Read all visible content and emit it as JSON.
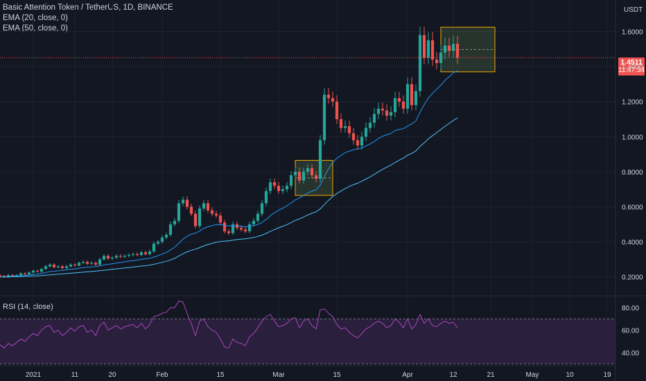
{
  "legend": {
    "title": "Basic Attention Token / TetherUS, 1D, BINANCE",
    "ema20": "EMA (20, close, 0)",
    "ema50": "EMA (50, close, 0)"
  },
  "rsi_label": "RSI (14, close)",
  "currency": "USDT",
  "last_price": {
    "value": "1.4511",
    "countdown": "11:47:34"
  },
  "colors": {
    "bg": "#131722",
    "up": "#26a69a",
    "down": "#ef5350",
    "ema20": "#2196f3",
    "ema50": "#4fc3f7",
    "rsi": "#ab47bc",
    "rsi_band": "#2a1f3d",
    "box_border": "#f7a600",
    "box_fill": "#4c6b45",
    "text": "#d1d4dc"
  },
  "chart_data": {
    "type": "candlestick",
    "symbol": "BATUSDT",
    "timeframe": "1D",
    "xlim": [
      "2020-12-24",
      "2021-05-21"
    ],
    "ylim": [
      0.1,
      1.78
    ],
    "y_ticks": [
      "0.2000",
      "0.4000",
      "0.6000",
      "0.8000",
      "1.0000",
      "1.2000",
      "1.4000",
      "1.6000"
    ],
    "x_ticks": [
      {
        "label": "2021",
        "date": "2021-01-01"
      },
      {
        "label": "11",
        "date": "2021-01-11"
      },
      {
        "label": "20",
        "date": "2021-01-20"
      },
      {
        "label": "Feb",
        "date": "2021-02-01"
      },
      {
        "label": "15",
        "date": "2021-02-15"
      },
      {
        "label": "Mar",
        "date": "2021-03-01"
      },
      {
        "label": "15",
        "date": "2021-03-15"
      },
      {
        "label": "Apr",
        "date": "2021-04-01"
      },
      {
        "label": "12",
        "date": "2021-04-12"
      },
      {
        "label": "21",
        "date": "2021-04-21"
      },
      {
        "label": "May",
        "date": "2021-05-01"
      },
      {
        "label": "10",
        "date": "2021-05-10"
      },
      {
        "label": "19",
        "date": "2021-05-19"
      }
    ],
    "start_date": "2020-12-24",
    "candles_close": [
      0.205,
      0.2,
      0.21,
      0.205,
      0.21,
      0.22,
      0.215,
      0.225,
      0.235,
      0.23,
      0.245,
      0.26,
      0.27,
      0.255,
      0.26,
      0.25,
      0.26,
      0.27,
      0.265,
      0.28,
      0.285,
      0.275,
      0.28,
      0.27,
      0.3,
      0.32,
      0.305,
      0.31,
      0.32,
      0.315,
      0.32,
      0.325,
      0.33,
      0.325,
      0.34,
      0.33,
      0.345,
      0.39,
      0.4,
      0.425,
      0.44,
      0.5,
      0.52,
      0.62,
      0.64,
      0.6,
      0.56,
      0.49,
      0.59,
      0.62,
      0.58,
      0.56,
      0.55,
      0.51,
      0.46,
      0.45,
      0.5,
      0.48,
      0.47,
      0.46,
      0.5,
      0.52,
      0.56,
      0.62,
      0.69,
      0.74,
      0.72,
      0.69,
      0.7,
      0.72,
      0.78,
      0.8,
      0.75,
      0.8,
      0.82,
      0.78,
      0.76,
      0.98,
      1.24,
      1.22,
      1.2,
      1.1,
      1.05,
      1.06,
      1.02,
      0.98,
      0.95,
      1.0,
      1.05,
      1.08,
      1.13,
      1.16,
      1.15,
      1.12,
      1.14,
      1.22,
      1.2,
      1.16,
      1.3,
      1.18,
      1.26,
      1.58,
      1.45,
      1.55,
      1.44,
      1.42,
      1.48,
      1.52,
      1.49,
      1.53,
      1.45
    ],
    "candles_open": [
      0.21,
      0.205,
      0.2,
      0.21,
      0.205,
      0.21,
      0.22,
      0.215,
      0.225,
      0.235,
      0.23,
      0.245,
      0.26,
      0.27,
      0.255,
      0.26,
      0.25,
      0.26,
      0.27,
      0.265,
      0.28,
      0.285,
      0.275,
      0.28,
      0.27,
      0.3,
      0.32,
      0.305,
      0.31,
      0.32,
      0.315,
      0.32,
      0.325,
      0.33,
      0.325,
      0.34,
      0.33,
      0.345,
      0.39,
      0.4,
      0.425,
      0.44,
      0.5,
      0.52,
      0.62,
      0.64,
      0.6,
      0.56,
      0.49,
      0.59,
      0.62,
      0.58,
      0.56,
      0.55,
      0.51,
      0.46,
      0.45,
      0.5,
      0.48,
      0.47,
      0.46,
      0.5,
      0.52,
      0.56,
      0.62,
      0.69,
      0.74,
      0.72,
      0.69,
      0.7,
      0.72,
      0.78,
      0.8,
      0.75,
      0.8,
      0.82,
      0.78,
      0.76,
      0.98,
      1.24,
      1.22,
      1.2,
      1.1,
      1.05,
      1.06,
      1.02,
      0.98,
      0.95,
      1.0,
      1.05,
      1.08,
      1.13,
      1.16,
      1.15,
      1.12,
      1.14,
      1.22,
      1.2,
      1.16,
      1.3,
      1.18,
      1.26,
      1.58,
      1.45,
      1.55,
      1.44,
      1.42,
      1.48,
      1.52,
      1.49,
      1.53
    ],
    "ema20": [
      0.2,
      0.2,
      0.202,
      0.203,
      0.205,
      0.207,
      0.208,
      0.211,
      0.214,
      0.216,
      0.22,
      0.225,
      0.23,
      0.232,
      0.235,
      0.237,
      0.24,
      0.243,
      0.245,
      0.249,
      0.253,
      0.255,
      0.257,
      0.259,
      0.263,
      0.268,
      0.272,
      0.275,
      0.279,
      0.283,
      0.286,
      0.29,
      0.293,
      0.296,
      0.3,
      0.303,
      0.306,
      0.313,
      0.321,
      0.33,
      0.339,
      0.354,
      0.369,
      0.392,
      0.415,
      0.432,
      0.444,
      0.449,
      0.462,
      0.477,
      0.486,
      0.493,
      0.498,
      0.499,
      0.495,
      0.491,
      0.492,
      0.491,
      0.489,
      0.486,
      0.488,
      0.492,
      0.499,
      0.511,
      0.528,
      0.549,
      0.566,
      0.58,
      0.592,
      0.606,
      0.622,
      0.639,
      0.65,
      0.665,
      0.678,
      0.689,
      0.697,
      0.724,
      0.774,
      0.817,
      0.853,
      0.877,
      0.893,
      0.909,
      0.918,
      0.925,
      0.929,
      0.936,
      0.947,
      0.959,
      0.973,
      0.99,
      1.003,
      1.011,
      1.019,
      1.035,
      1.041,
      1.046,
      1.06,
      1.073,
      1.09,
      1.14,
      1.182,
      1.221,
      1.248,
      1.271,
      1.294,
      1.322,
      1.342,
      1.365,
      1.376
    ],
    "ema50": [
      0.2,
      0.2,
      0.2,
      0.201,
      0.201,
      0.202,
      0.203,
      0.204,
      0.205,
      0.206,
      0.208,
      0.21,
      0.212,
      0.214,
      0.216,
      0.217,
      0.219,
      0.221,
      0.223,
      0.225,
      0.227,
      0.229,
      0.231,
      0.233,
      0.235,
      0.238,
      0.24,
      0.243,
      0.246,
      0.248,
      0.251,
      0.253,
      0.256,
      0.259,
      0.262,
      0.264,
      0.267,
      0.272,
      0.277,
      0.283,
      0.289,
      0.297,
      0.306,
      0.319,
      0.332,
      0.343,
      0.352,
      0.358,
      0.367,
      0.377,
      0.385,
      0.391,
      0.398,
      0.402,
      0.404,
      0.406,
      0.41,
      0.413,
      0.415,
      0.417,
      0.421,
      0.425,
      0.431,
      0.438,
      0.448,
      0.46,
      0.47,
      0.48,
      0.489,
      0.498,
      0.51,
      0.522,
      0.531,
      0.542,
      0.553,
      0.563,
      0.571,
      0.588,
      0.613,
      0.637,
      0.659,
      0.676,
      0.69,
      0.704,
      0.716,
      0.726,
      0.735,
      0.746,
      0.758,
      0.771,
      0.785,
      0.8,
      0.814,
      0.826,
      0.838,
      0.853,
      0.866,
      0.878,
      0.894,
      0.905,
      0.919,
      0.945,
      0.965,
      0.988,
      1.006,
      1.023,
      1.041,
      1.059,
      1.076,
      1.093,
      1.107
    ],
    "rsi": [
      47,
      44,
      48,
      46,
      49,
      52,
      50,
      54,
      57,
      55,
      60,
      63,
      64,
      58,
      60,
      55,
      58,
      62,
      59,
      63,
      64,
      58,
      60,
      55,
      64,
      67,
      60,
      62,
      64,
      61,
      63,
      64,
      65,
      62,
      66,
      61,
      65,
      72,
      73,
      75,
      76,
      80,
      80,
      86,
      85,
      75,
      66,
      55,
      68,
      70,
      63,
      60,
      58,
      52,
      45,
      44,
      52,
      49,
      48,
      46,
      54,
      57,
      62,
      68,
      72,
      74,
      68,
      63,
      64,
      66,
      70,
      71,
      62,
      68,
      70,
      64,
      61,
      78,
      79,
      75,
      72,
      65,
      61,
      62,
      58,
      55,
      53,
      57,
      61,
      63,
      66,
      68,
      66,
      62,
      64,
      70,
      67,
      62,
      70,
      61,
      65,
      74,
      66,
      70,
      64,
      63,
      66,
      68,
      66,
      67,
      62
    ],
    "rsi_ylim": [
      30,
      90
    ],
    "rsi_ticks": [
      "80.00",
      "60.00",
      "40.00"
    ],
    "rsi_bands": [
      70,
      30
    ],
    "boxes": [
      {
        "start": "2021-03-05",
        "end": "2021-03-14",
        "low": 0.665,
        "high": 0.865
      },
      {
        "start": "2021-04-09",
        "end": "2021-04-22",
        "low": 1.37,
        "high": 1.625
      }
    ]
  }
}
